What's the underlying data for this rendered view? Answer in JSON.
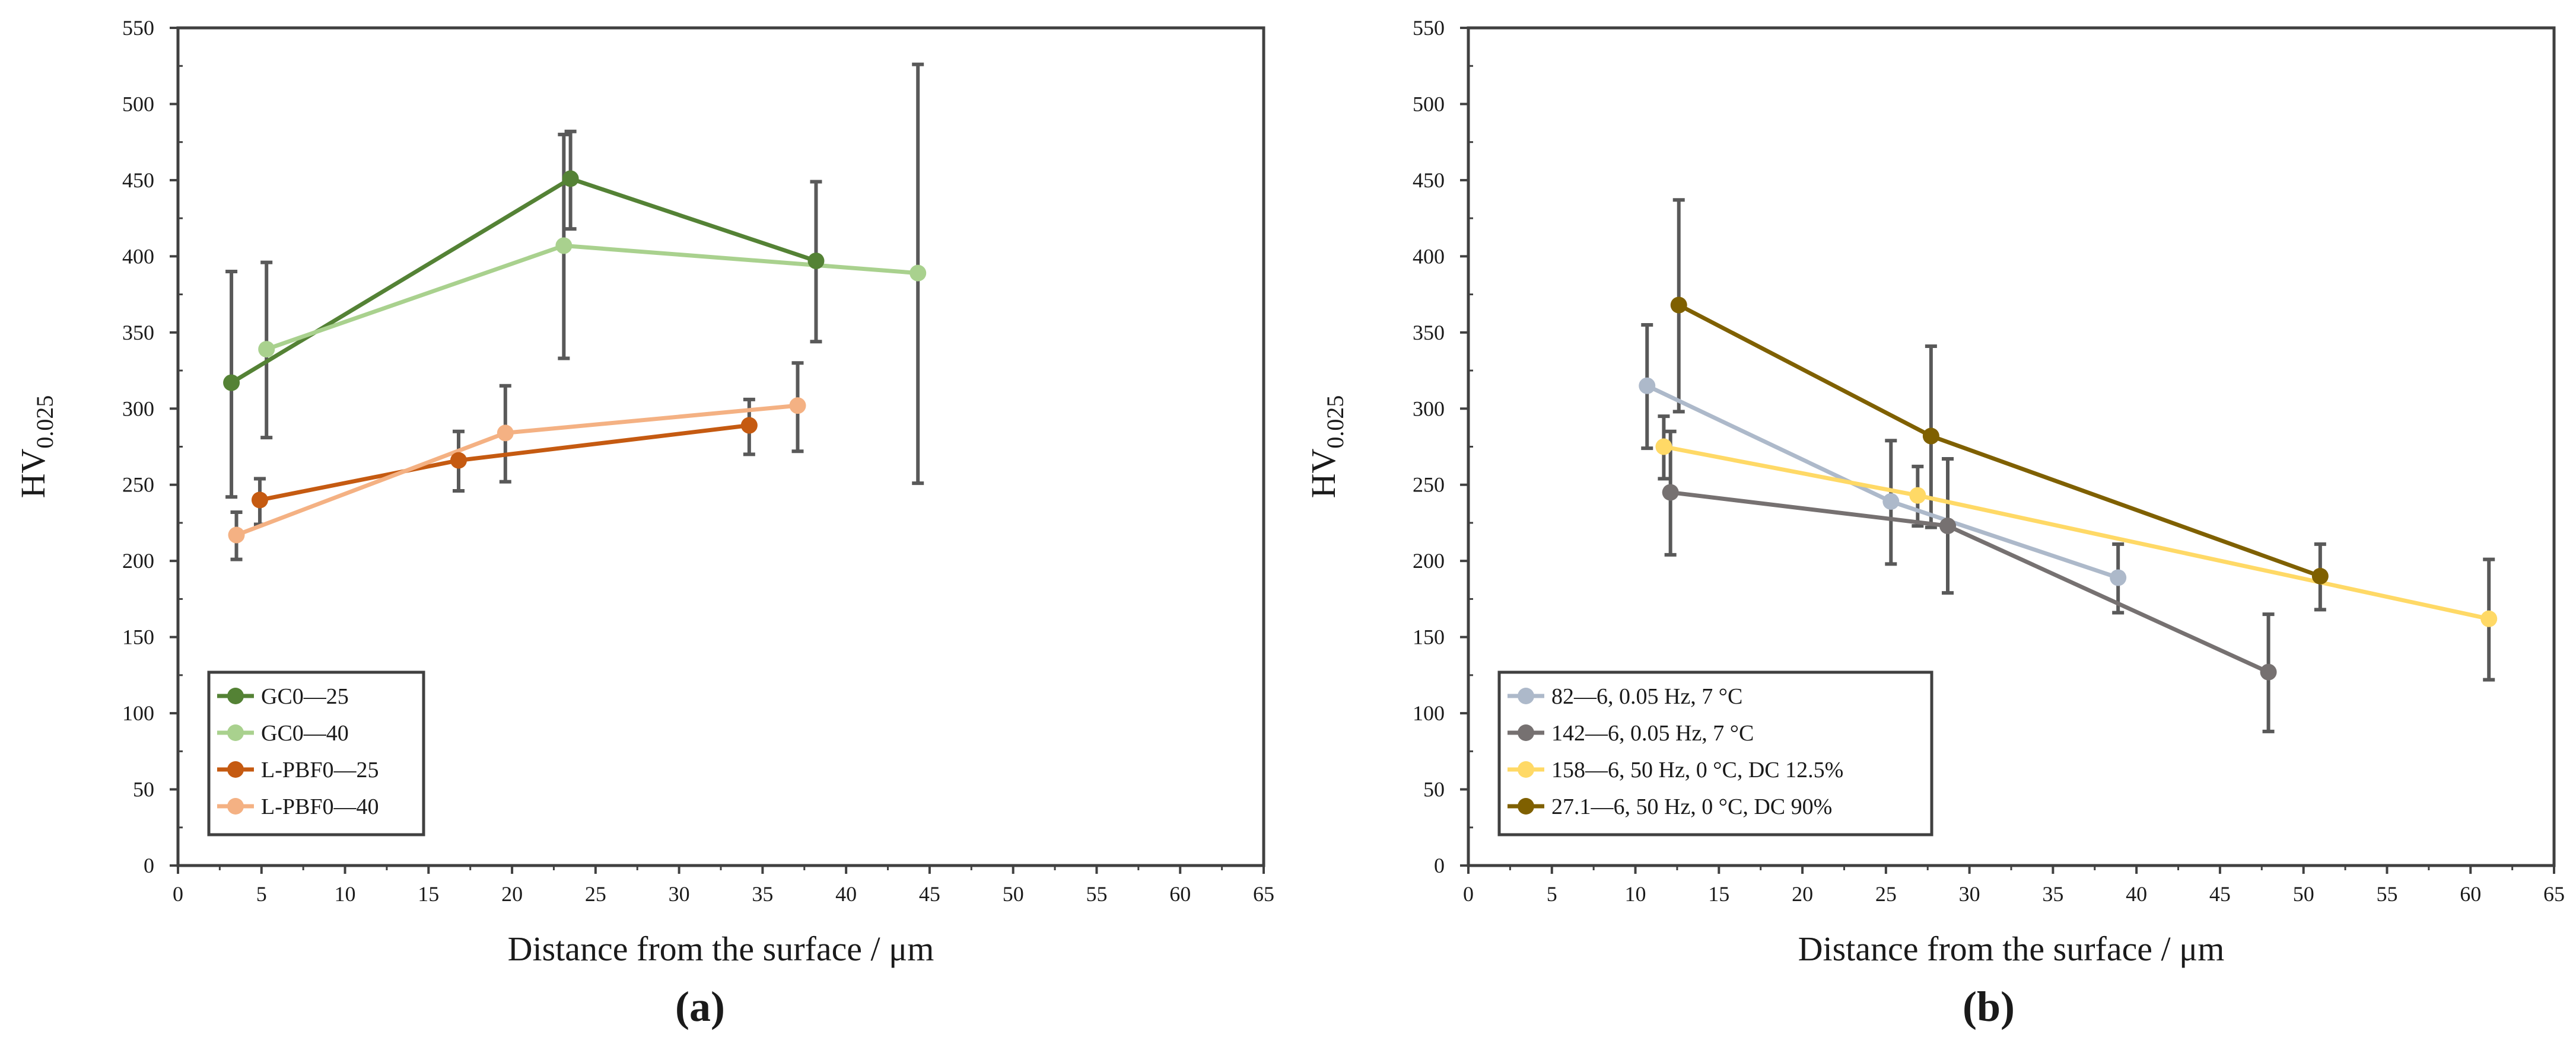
{
  "figure": {
    "panel_labels": [
      "(a)",
      "(b)"
    ]
  },
  "chart_data": [
    {
      "type": "line",
      "panel": "(a)",
      "xlabel": "Distance from the surface  /  μm",
      "ylabel": "HV",
      "ylabel_sub": "0.025",
      "xlim": [
        0,
        65
      ],
      "ylim": [
        0,
        550
      ],
      "xticks": [
        0,
        5,
        10,
        15,
        20,
        25,
        30,
        35,
        40,
        45,
        50,
        55,
        60,
        65
      ],
      "yticks": [
        0,
        50,
        100,
        150,
        200,
        250,
        300,
        350,
        400,
        450,
        500,
        550
      ],
      "legend_position": "bottom-left",
      "series": [
        {
          "name": "GC0—25",
          "color": "#548235",
          "points": [
            {
              "x": 3.2,
              "y": 317,
              "err_low": 242,
              "err_high": 390
            },
            {
              "x": 23.5,
              "y": 451,
              "err_low": 418,
              "err_high": 482
            },
            {
              "x": 38.2,
              "y": 397,
              "err_low": 344,
              "err_high": 449
            }
          ]
        },
        {
          "name": "GC0—40",
          "color": "#a9d18e",
          "points": [
            {
              "x": 5.3,
              "y": 339,
              "err_low": 281,
              "err_high": 396
            },
            {
              "x": 23.1,
              "y": 407,
              "err_low": 333,
              "err_high": 480
            },
            {
              "x": 44.3,
              "y": 389,
              "err_low": 251,
              "err_high": 526
            }
          ]
        },
        {
          "name": "L-PBF0—25",
          "color": "#c55a11",
          "points": [
            {
              "x": 4.9,
              "y": 240,
              "err_low": 224,
              "err_high": 254
            },
            {
              "x": 16.8,
              "y": 266,
              "err_low": 246,
              "err_high": 285
            },
            {
              "x": 34.2,
              "y": 289,
              "err_low": 270,
              "err_high": 306
            }
          ]
        },
        {
          "name": "L-PBF0—40",
          "color": "#f4b183",
          "points": [
            {
              "x": 3.5,
              "y": 217,
              "err_low": 201,
              "err_high": 232
            },
            {
              "x": 19.6,
              "y": 284,
              "err_low": 252,
              "err_high": 315
            },
            {
              "x": 37.1,
              "y": 302,
              "err_low": 272,
              "err_high": 330
            }
          ]
        }
      ]
    },
    {
      "type": "line",
      "panel": "(b)",
      "xlabel": "Distance from the surface  /  μm",
      "ylabel": "HV",
      "ylabel_sub": "0.025",
      "xlim": [
        0,
        65
      ],
      "ylim": [
        0,
        550
      ],
      "xticks": [
        0,
        5,
        10,
        15,
        20,
        25,
        30,
        35,
        40,
        45,
        50,
        55,
        60,
        65
      ],
      "yticks": [
        0,
        50,
        100,
        150,
        200,
        250,
        300,
        350,
        400,
        450,
        500,
        550
      ],
      "legend_position": "bottom-left",
      "series": [
        {
          "name": "82—6, 0.05 Hz, 7 °C",
          "color": "#adb9ca",
          "points": [
            {
              "x": 10.7,
              "y": 315,
              "err_low": 274,
              "err_high": 355
            },
            {
              "x": 25.3,
              "y": 239,
              "err_low": 198,
              "err_high": 279
            },
            {
              "x": 38.9,
              "y": 189,
              "err_low": 166,
              "err_high": 211
            }
          ]
        },
        {
          "name": "142—6, 0.05 Hz, 7 °C",
          "color": "#767171",
          "points": [
            {
              "x": 12.1,
              "y": 245,
              "err_low": 204,
              "err_high": 285
            },
            {
              "x": 28.7,
              "y": 223,
              "err_low": 179,
              "err_high": 267
            },
            {
              "x": 47.9,
              "y": 127,
              "err_low": 88,
              "err_high": 165
            }
          ]
        },
        {
          "name": "158—6, 50 Hz, 0 °C, DC 12.5%",
          "color": "#ffd966",
          "points": [
            {
              "x": 11.7,
              "y": 275,
              "err_low": 254,
              "err_high": 295
            },
            {
              "x": 26.9,
              "y": 243,
              "err_low": 223,
              "err_high": 262
            },
            {
              "x": 61.1,
              "y": 162,
              "err_low": 122,
              "err_high": 201
            }
          ]
        },
        {
          "name": "27.1—6, 50 Hz, 0 °C, DC 90%",
          "color": "#7f6000",
          "points": [
            {
              "x": 12.6,
              "y": 368,
              "err_low": 298,
              "err_high": 437
            },
            {
              "x": 27.7,
              "y": 282,
              "err_low": 222,
              "err_high": 341
            },
            {
              "x": 51.0,
              "y": 190,
              "err_low": 168,
              "err_high": 211
            }
          ]
        }
      ]
    }
  ]
}
